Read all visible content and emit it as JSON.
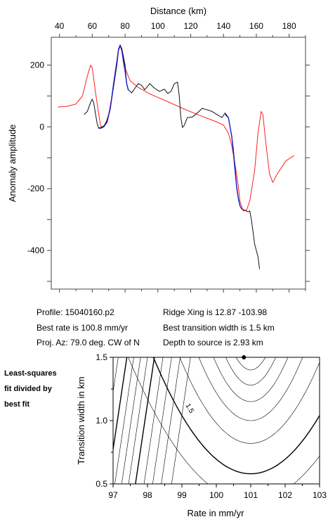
{
  "chart_data": [
    {
      "type": "line",
      "xlabel": "Distance (km)",
      "ylabel": "Anomaly amplitude",
      "xlim": [
        35,
        190
      ],
      "ylim": [
        -525,
        290
      ],
      "x_ticks": [
        40,
        60,
        80,
        100,
        120,
        140,
        160,
        180
      ],
      "y_ticks": [
        200,
        0,
        -200,
        -400
      ],
      "x_tick_labels": [
        "40",
        "60",
        "80",
        "100",
        "120",
        "140",
        "160",
        "180"
      ],
      "y_tick_labels": [
        "200",
        "0",
        "-200",
        "-400"
      ],
      "series": [
        {
          "color": "#ff2020",
          "points": [
            [
              39,
              64
            ],
            [
              45,
              67
            ],
            [
              50,
              74
            ],
            [
              54,
              100
            ],
            [
              57,
              165
            ],
            [
              59,
              200
            ],
            [
              60,
              190
            ],
            [
              62,
              110
            ],
            [
              64,
              40
            ],
            [
              65,
              5
            ],
            [
              66,
              -2
            ],
            [
              68,
              10
            ],
            [
              70,
              40
            ],
            [
              72,
              100
            ],
            [
              74,
              180
            ],
            [
              76,
              250
            ],
            [
              77,
              262
            ],
            [
              78,
              245
            ],
            [
              80,
              190
            ],
            [
              83,
              150
            ],
            [
              88,
              128
            ],
            [
              95,
              107
            ],
            [
              105,
              84
            ],
            [
              115,
              60
            ],
            [
              125,
              38
            ],
            [
              135,
              18
            ],
            [
              140,
              6
            ],
            [
              143,
              -20
            ],
            [
              145,
              -60
            ],
            [
              147,
              -120
            ],
            [
              149,
              -190
            ],
            [
              150,
              -240
            ],
            [
              152,
              -272
            ],
            [
              154,
              -270
            ],
            [
              156,
              -240
            ],
            [
              159,
              -140
            ],
            [
              161,
              -20
            ],
            [
              163,
              50
            ],
            [
              164,
              40
            ],
            [
              166,
              -60
            ],
            [
              168,
              -150
            ],
            [
              170,
              -180
            ],
            [
              173,
              -150
            ],
            [
              178,
              -110
            ],
            [
              183,
              -93
            ]
          ]
        },
        {
          "color": "#111111",
          "points": [
            [
              55,
              40
            ],
            [
              57,
              50
            ],
            [
              59,
              80
            ],
            [
              60,
              90
            ],
            [
              61,
              75
            ],
            [
              62,
              40
            ],
            [
              63,
              10
            ],
            [
              64,
              -5
            ],
            [
              65,
              -2
            ],
            [
              67,
              2
            ],
            [
              69,
              20
            ],
            [
              71,
              60
            ],
            [
              73,
              130
            ],
            [
              75,
              200
            ],
            [
              76,
              248
            ],
            [
              77,
              262
            ],
            [
              78,
              255
            ],
            [
              80,
              200
            ],
            [
              81,
              140
            ],
            [
              82,
              120
            ],
            [
              84,
              110
            ],
            [
              86,
              125
            ],
            [
              88,
              140
            ],
            [
              90,
              135
            ],
            [
              92,
              120
            ],
            [
              95,
              140
            ],
            [
              98,
              125
            ],
            [
              101,
              115
            ],
            [
              104,
              122
            ],
            [
              106,
              108
            ],
            [
              108,
              115
            ],
            [
              110,
              140
            ],
            [
              112,
              145
            ],
            [
              113,
              100
            ],
            [
              114,
              30
            ],
            [
              115,
              -2
            ],
            [
              116,
              5
            ],
            [
              118,
              30
            ],
            [
              121,
              32
            ],
            [
              124,
              45
            ],
            [
              127,
              60
            ],
            [
              130,
              55
            ],
            [
              133,
              50
            ],
            [
              136,
              40
            ],
            [
              139,
              30
            ],
            [
              141,
              45
            ],
            [
              143,
              30
            ],
            [
              145,
              -30
            ],
            [
              146,
              -70
            ],
            [
              147,
              -130
            ],
            [
              148,
              -190
            ],
            [
              149,
              -230
            ],
            [
              150,
              -255
            ],
            [
              151,
              -265
            ],
            [
              153,
              -270
            ],
            [
              155,
              -275
            ],
            [
              156,
              -272
            ],
            [
              157,
              -300
            ],
            [
              158,
              -340
            ],
            [
              159,
              -380
            ],
            [
              161,
              -420
            ],
            [
              162,
              -460
            ]
          ]
        },
        {
          "color": "#1f1fd0",
          "points": [
            [
              64,
              -2
            ],
            [
              65,
              -5
            ],
            [
              67,
              0
            ],
            [
              69,
              15
            ],
            [
              71,
              60
            ],
            [
              73,
              140
            ],
            [
              75,
              210
            ],
            [
              76,
              252
            ],
            [
              77,
              265
            ],
            [
              78,
              250
            ],
            [
              79,
              210
            ],
            [
              80,
              180
            ],
            [
              81,
              140
            ],
            [
              82,
              118
            ]
          ]
        },
        {
          "color": "#1f1fd0",
          "points": [
            [
              141,
              40
            ],
            [
              143,
              30
            ],
            [
              145,
              -30
            ],
            [
              146,
              -80
            ],
            [
              147,
              -140
            ],
            [
              148,
              -195
            ],
            [
              149,
              -230
            ],
            [
              150,
              -255
            ],
            [
              151,
              -265
            ]
          ]
        }
      ]
    },
    {
      "type": "contour",
      "xlabel": "Rate in mm/yr",
      "ylabel": "Transition width in km",
      "xlim": [
        97,
        103
      ],
      "ylim": [
        0.5,
        1.5
      ],
      "x_ticks": [
        97,
        98,
        99,
        100,
        101,
        102,
        103
      ],
      "y_ticks": [
        0.5,
        1.0,
        1.5
      ],
      "x_tick_labels": [
        "97",
        "98",
        "99",
        "100",
        "101",
        "102",
        "103"
      ],
      "y_tick_labels": [
        "0.5",
        "1.0",
        "1.5"
      ],
      "contour_label": "1.5",
      "best_fit_point": [
        100.8,
        1.5
      ],
      "note": "Least-squares fit divided by best fit"
    }
  ],
  "info": {
    "profile": "Profile: 15040160.p2",
    "best_rate": "Best rate is 100.8 mm/yr",
    "proj_az": "Proj. Az: 79.0 deg. CW of N",
    "ridge_xing": "Ridge Xing is 12.87 -103.98",
    "best_width": "Best transition width is 1.5 km",
    "depth": "Depth to source is   2.93 km"
  },
  "side_note": [
    "Least-squares",
    "fit divided by",
    "best fit"
  ]
}
